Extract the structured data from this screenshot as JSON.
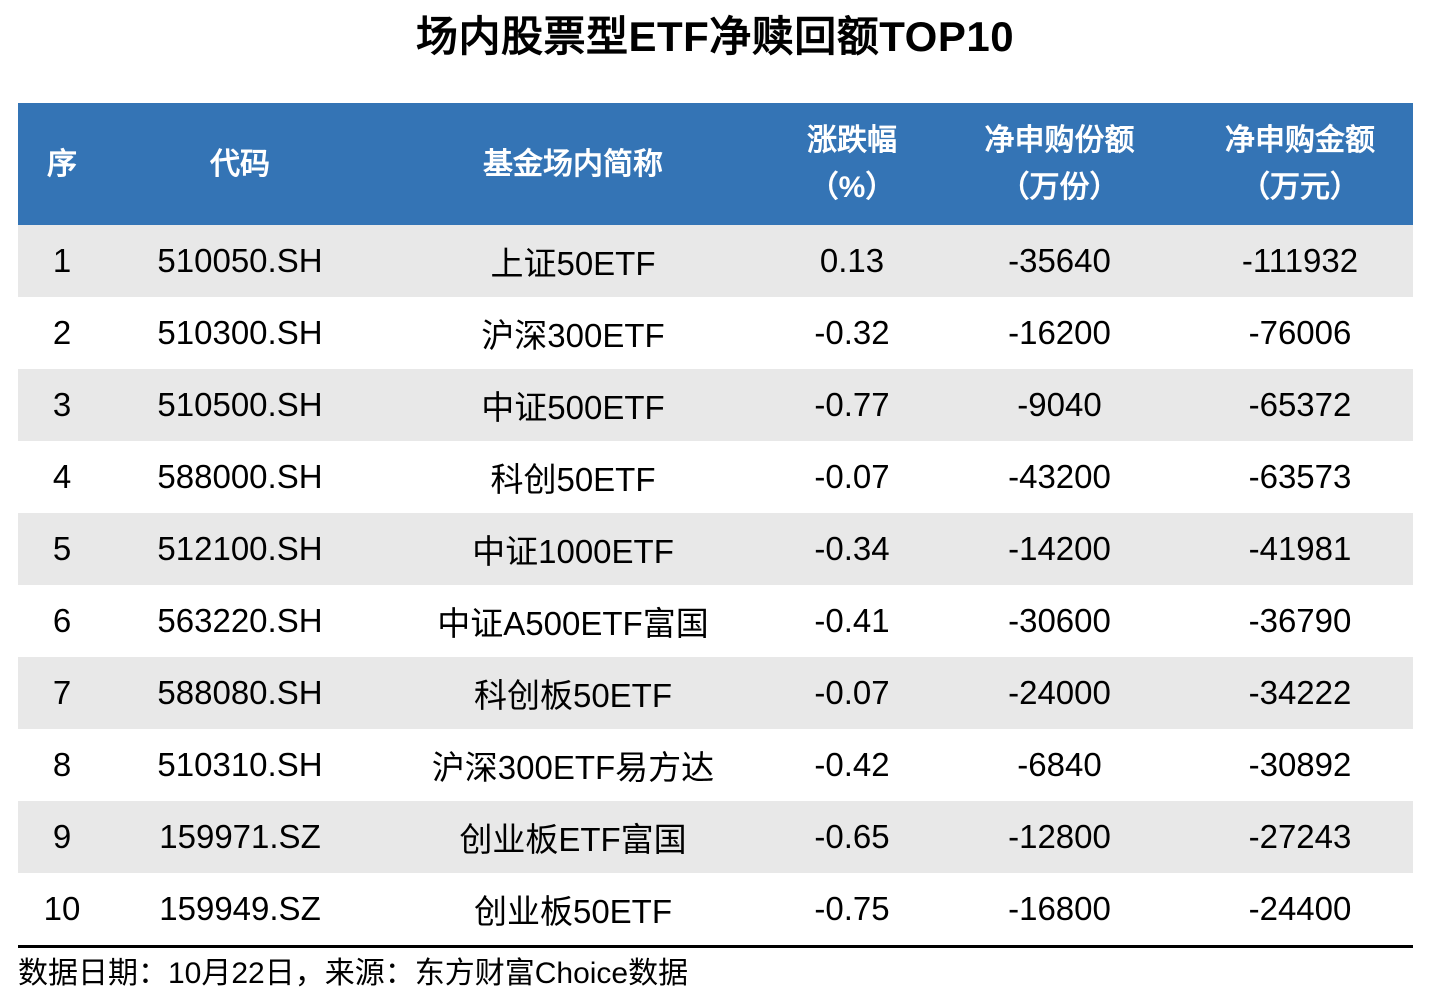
{
  "page": {
    "background": "#FFFFFF"
  },
  "chart_data": {
    "type": "table",
    "title": "场内股票型ETF净赎回额TOP10",
    "columns": [
      {
        "key": "no",
        "label": "序",
        "unit": ""
      },
      {
        "key": "code",
        "label": "代码",
        "unit": ""
      },
      {
        "key": "name",
        "label": "基金场内简称",
        "unit": ""
      },
      {
        "key": "change_pct",
        "label": "涨跌幅",
        "unit": "（%）"
      },
      {
        "key": "net_shares_wan",
        "label": "净申购份额",
        "unit": "（万份）"
      },
      {
        "key": "net_amount_wan",
        "label": "净申购金额",
        "unit": "（万元）"
      }
    ],
    "rows": [
      {
        "no": "1",
        "code": "510050.SH",
        "name": "上证50ETF",
        "change_pct": "0.13",
        "net_shares_wan": "-35640",
        "net_amount_wan": "-111932"
      },
      {
        "no": "2",
        "code": "510300.SH",
        "name": "沪深300ETF",
        "change_pct": "-0.32",
        "net_shares_wan": "-16200",
        "net_amount_wan": "-76006"
      },
      {
        "no": "3",
        "code": "510500.SH",
        "name": "中证500ETF",
        "change_pct": "-0.77",
        "net_shares_wan": "-9040",
        "net_amount_wan": "-65372"
      },
      {
        "no": "4",
        "code": "588000.SH",
        "name": "科创50ETF",
        "change_pct": "-0.07",
        "net_shares_wan": "-43200",
        "net_amount_wan": "-63573"
      },
      {
        "no": "5",
        "code": "512100.SH",
        "name": "中证1000ETF",
        "change_pct": "-0.34",
        "net_shares_wan": "-14200",
        "net_amount_wan": "-41981"
      },
      {
        "no": "6",
        "code": "563220.SH",
        "name": "中证A500ETF富国",
        "change_pct": "-0.41",
        "net_shares_wan": "-30600",
        "net_amount_wan": "-36790"
      },
      {
        "no": "7",
        "code": "588080.SH",
        "name": "科创板50ETF",
        "change_pct": "-0.07",
        "net_shares_wan": "-24000",
        "net_amount_wan": "-34222"
      },
      {
        "no": "8",
        "code": "510310.SH",
        "name": "沪深300ETF易方达",
        "change_pct": "-0.42",
        "net_shares_wan": "-6840",
        "net_amount_wan": "-30892"
      },
      {
        "no": "9",
        "code": "159971.SZ",
        "name": "创业板ETF富国",
        "change_pct": "-0.65",
        "net_shares_wan": "-12800",
        "net_amount_wan": "-27243"
      },
      {
        "no": "10",
        "code": "159949.SZ",
        "name": "创业板50ETF",
        "change_pct": "-0.75",
        "net_shares_wan": "-16800",
        "net_amount_wan": "-24400"
      }
    ],
    "styles": {
      "header_bg": "#3474B5",
      "header_text": "#FFFFFF",
      "row_alt_bg": "#E8E8E8",
      "row_bg": "#FFFFFF",
      "body_text": "#000000"
    }
  },
  "footer": {
    "text": "数据日期：10月22日，来源：东方财富Choice数据"
  }
}
